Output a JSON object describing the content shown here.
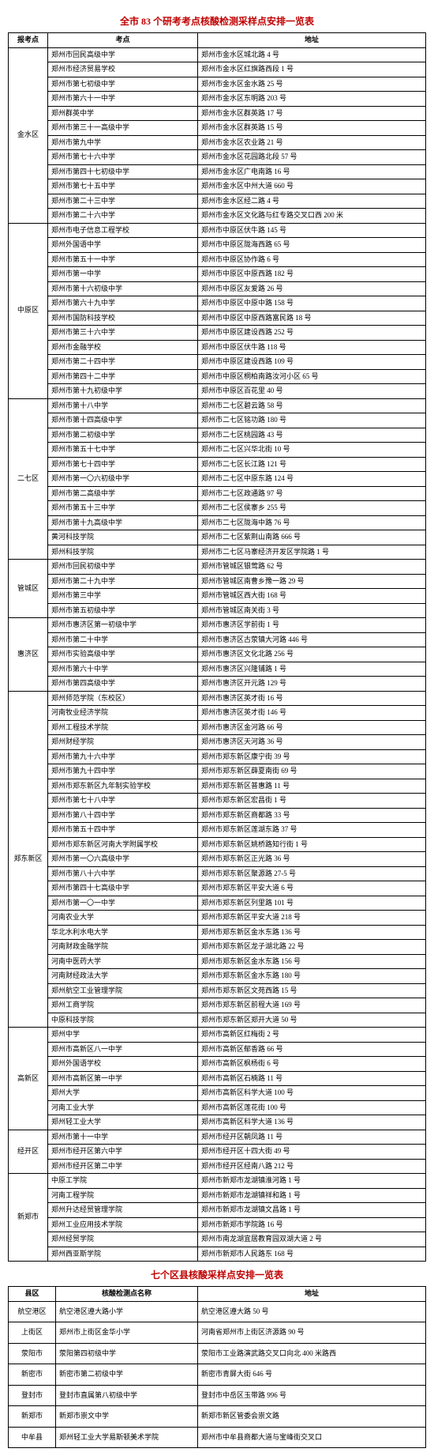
{
  "title1_color": "#c00000",
  "title2_color": "#c00000",
  "title1": "全市 83 个研考考点核酸检测采样点安排一览表",
  "title2": "七个区县核酸采样点安排一览表",
  "headers1": {
    "district": "报考点",
    "point": "考点",
    "addr": "地址"
  },
  "headers2": {
    "district": "县区",
    "point": "核酸检测点名称",
    "addr": "地址"
  },
  "table1": [
    {
      "district": "金水区",
      "rows": [
        [
          "郑州市回民高级中学",
          "郑州市金水区城北路 4 号"
        ],
        [
          "郑州市经济贸易学校",
          "郑州市金水区红旗路西段 1 号"
        ],
        [
          "郑州市第七初级中学",
          "郑州市金水区金水路 25 号"
        ],
        [
          "郑州市第六十一中学",
          "郑州市金水区东明路 203 号"
        ],
        [
          "郑州群英中学",
          "郑州市金水区群英路 17 号"
        ],
        [
          "郑州市第三十一高级中学",
          "郑州市金水区群英路 15 号"
        ],
        [
          "郑州市第九中学",
          "郑州市金水区农业路 21 号"
        ],
        [
          "郑州市第七十六中学",
          "郑州市金水区花园路北段 57 号"
        ],
        [
          "郑州市第四十七初级中学",
          "郑州市金水区广电南路 16 号"
        ],
        [
          "郑州市第七十五中学",
          "郑州市金水区中州大道 660 号"
        ],
        [
          "郑州市第二十三中学",
          "郑州市金水区经二路 4 号"
        ],
        [
          "郑州市第二十六中学",
          "郑州市金水区文化路与红专路交叉口西 200 米"
        ]
      ]
    },
    {
      "district": "中原区",
      "rows": [
        [
          "郑州市电子信息工程学校",
          "郑州市中原区伏牛路 145 号"
        ],
        [
          "郑州外国语中学",
          "郑州市中原区陇海西路 65 号"
        ],
        [
          "郑州市第五十一中学",
          "郑州市中原区协作路 6 号"
        ],
        [
          "郑州市第一中学",
          "郑州市中原区中原西路 182 号"
        ],
        [
          "郑州市第十六初级中学",
          "郑州市中原区友爱路 26 号"
        ],
        [
          "郑州市第六十九中学",
          "郑州市中原区中原中路 158 号"
        ],
        [
          "郑州市国防科技学校",
          "郑州市中原区中原西路富民路 18 号"
        ],
        [
          "郑州市第三十六中学",
          "郑州市中原区建设西路 252 号"
        ],
        [
          "郑州市金融学校",
          "郑州市中原区伏牛路 118 号"
        ],
        [
          "郑州市第二十四中学",
          "郑州市中原区建设西路 109 号"
        ],
        [
          "郑州市第四十二中学",
          "郑州市中原区桐柏南路汝河小区 65 号"
        ],
        [
          "郑州市第十九初级中学",
          "郑州市中原区百花里 40 号"
        ]
      ]
    },
    {
      "district": "二七区",
      "rows": [
        [
          "郑州市第十八中学",
          "郑州市二七区碧云路 58 号"
        ],
        [
          "郑州市第十四高级中学",
          "郑州市二七区铭功路 180 号"
        ],
        [
          "郑州市第二初级中学",
          "郑州市二七区桃园路 43 号"
        ],
        [
          "郑州市第五十七中学",
          "郑州市二七区兴华北街 10 号"
        ],
        [
          "郑州市第七十四中学",
          "郑州市二七区长江路 121 号"
        ],
        [
          "郑州市第一〇六初级中学",
          "郑州市二七区中原东路 124 号"
        ],
        [
          "郑州市第二高级中学",
          "郑州市二七区政通路 97 号"
        ],
        [
          "郑州市第五十三中学",
          "郑州市二七区侯寨乡 255 号"
        ],
        [
          "郑州市第十九高级中学",
          "郑州市二七区陇海中路 76 号"
        ],
        [
          "黄河科技学院",
          "郑州市二七区紫荆山南路 666 号"
        ],
        [
          "郑州科技学院",
          "郑州市二七区马寨经济开发区学院路 1 号"
        ]
      ]
    },
    {
      "district": "管城区",
      "rows": [
        [
          "郑州市回民初级中学",
          "郑州市管城区银莺路 62 号"
        ],
        [
          "郑州市第二十九中学",
          "郑州市管城区南曹乡豫一路 29 号"
        ],
        [
          "郑州市第三中学",
          "郑州市管城区西大街 168 号"
        ],
        [
          "郑州市第五初级中学",
          "郑州市管城区南关街 3 号"
        ]
      ]
    },
    {
      "district": "惠济区",
      "rows": [
        [
          "郑州市惠济区第一初级中学",
          "郑州市惠济区学前街 1 号"
        ],
        [
          "郑州市第二十中学",
          "郑州市惠济区古荥镇大河路 446 号"
        ],
        [
          "郑州市实验高级中学",
          "郑州市惠济区文化北路 256 号"
        ],
        [
          "郑州市第六十中学",
          "郑州市惠济区兴隆铺路 1 号"
        ],
        [
          "郑州市第四高级中学",
          "郑州市惠济区开元路 129 号"
        ]
      ]
    },
    {
      "district": "郑东新区",
      "rows": [
        [
          "郑州师范学院（东校区）",
          "郑州市惠济区英才街 16 号"
        ],
        [
          "河南牧业经济学院",
          "郑州市惠济区英才街 146 号"
        ],
        [
          "郑州工程技术学院",
          "郑州市惠济区金河路 66 号"
        ],
        [
          "郑州财经学院",
          "郑州市惠济区天河路 36 号"
        ],
        [
          "郑州市第九十六中学",
          "郑州市郑东新区康宁街 39 号"
        ],
        [
          "郑州市第九十四中学",
          "郑州市郑东新区薛夏南街 69 号"
        ],
        [
          "郑州市郑东新区九年制实验学校",
          "郑州市郑东新区普惠路 11 号"
        ],
        [
          "郑州市第七十八中学",
          "郑州市郑东新区宏昌街 1 号"
        ],
        [
          "郑州市第八十四中学",
          "郑州市郑东新区商都路 33 号"
        ],
        [
          "郑州市第五十四中学",
          "郑州市郑东新区莲湖东路 37 号"
        ],
        [
          "郑州市郑东新区河南大学附属学校",
          "郑州市郑东新区姚桥路知行街 1 号"
        ],
        [
          "郑州市第一〇六高级中学",
          "郑州市郑东新区正光路 36 号"
        ],
        [
          "郑州市第八十六中学",
          "郑州市郑东新区聚源路 27-5 号"
        ],
        [
          "郑州市第四十七高级中学",
          "郑州市郑东新区平安大道 6 号"
        ],
        [
          "郑州市第一〇一中学",
          "郑州市郑东新区列里路 101 号"
        ],
        [
          "河南农业大学",
          "郑州市郑东新区平安大道 218 号"
        ],
        [
          "华北水利水电大学",
          "郑州市郑东新区金水东路 136 号"
        ],
        [
          "河南财政金融学院",
          "郑州市郑东新区龙子湖北路 22 号"
        ],
        [
          "河南中医药大学",
          "郑州市郑东新区金水东路 156 号"
        ],
        [
          "河南财经政法大学",
          "郑州市郑东新区金水东路 180 号"
        ],
        [
          "郑州航空工业管理学院",
          "郑州市郑东新区文苑西路 15 号"
        ],
        [
          "郑州工商学院",
          "郑州市郑东新区前程大道 169 号"
        ],
        [
          "中原科技学院",
          "郑州市郑东新区郑开大道 50 号"
        ]
      ]
    },
    {
      "district": "高新区",
      "rows": [
        [
          "郑州中学",
          "郑州市高新区红梅街 2 号"
        ],
        [
          "郑州市高新区八一中学",
          "郑州市高新区郁香路 66 号"
        ],
        [
          "郑州外国语学校",
          "郑州市高新区枫杨街 6 号"
        ],
        [
          "郑州市高新区第一中学",
          "郑州市高新区石楠路 11 号"
        ],
        [
          "郑州大学",
          "郑州市高新区科学大道 100 号"
        ],
        [
          "河南工业大学",
          "郑州市高新区莲花街 100 号"
        ],
        [
          "郑州轻工业大学",
          "郑州市高新区科学大道 136 号"
        ]
      ]
    },
    {
      "district": "经开区",
      "rows": [
        [
          "郑州市第十一中学",
          "郑州市经开区朝凤路 11 号"
        ],
        [
          "郑州市经开区第六中学",
          "郑州市经开区十四大街 49 号"
        ],
        [
          "郑州市经开区第二中学",
          "郑州市经开区经南八路 212 号"
        ]
      ]
    },
    {
      "district": "新郑市",
      "rows": [
        [
          "中原工学院",
          "郑州市新郑市龙湖镇淮河路 1 号"
        ],
        [
          "河南工程学院",
          "郑州市新郑市龙湖镇祥和路 1 号"
        ],
        [
          "郑州升达经贸管理学院",
          "郑州市新郑市龙湖镇文昌路 1 号"
        ],
        [
          "郑州工业应用技术学院",
          "郑州市新郑市学院路 16 号"
        ],
        [
          "郑州经贸学院",
          "郑州市南龙湖宜居教育园双湖大道 2 号"
        ],
        [
          "郑州西亚斯学院",
          "郑州市新郑市人民路东 168 号"
        ]
      ]
    }
  ],
  "table2": [
    [
      "航空港区",
      "航空港区遵大路小学",
      "航空港区遵大路 50 号"
    ],
    [
      "上街区",
      "郑州市上街区金华小学",
      "河南省郑州市上街区济源路 90 号"
    ],
    [
      "荥阳市",
      "荥阳第四初级中学",
      "荥阳市工业路演武路交叉口向北 400 米路西"
    ],
    [
      "新密市",
      "新密市第二初级中学",
      "新密市青屏大街 646 号"
    ],
    [
      "登封市",
      "登封市直属第八初级中学",
      "登封市中岳区玉带路 996 号"
    ],
    [
      "新郑市",
      "新郑市崇文中学",
      "新郑市新区管委会崇文路"
    ],
    [
      "中牟县",
      "郑州轻工业大学易斯顿美术学院",
      "郑州市中牟县商都大道与宝峰街交叉口"
    ]
  ]
}
